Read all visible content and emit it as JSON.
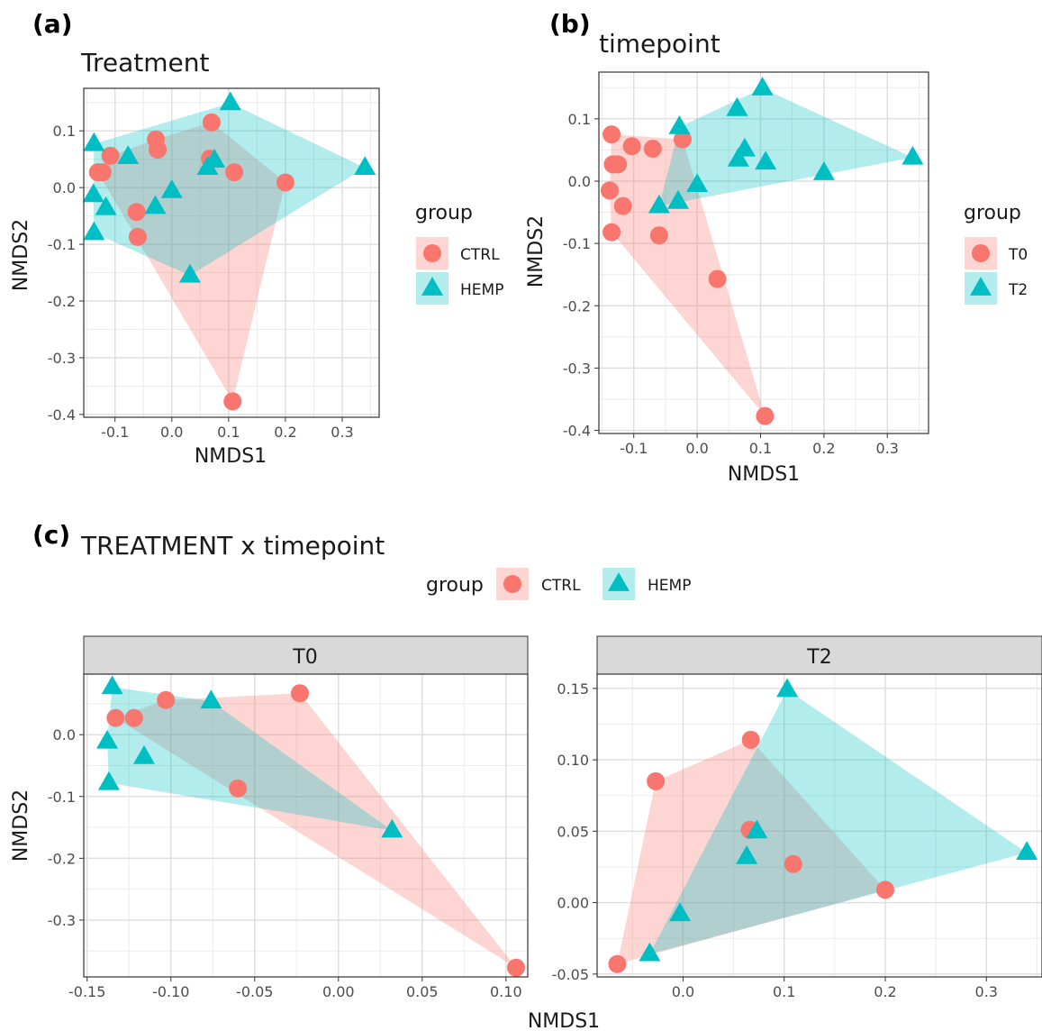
{
  "figure": {
    "colors": {
      "CTRL": "#F8766D",
      "HEMP": "#00BFC4",
      "T0": "#F8766D",
      "T2": "#00BFC4"
    }
  },
  "panels": {
    "a": {
      "letter": "(a)",
      "title": "Treatment"
    },
    "b": {
      "letter": "(b)",
      "title": "timepoint"
    },
    "c": {
      "letter": "(c)",
      "title": "TREATMENT x timepoint"
    }
  },
  "legend_a": {
    "title": "group",
    "items": [
      {
        "label": "CTRL",
        "shape": "circle"
      },
      {
        "label": "HEMP",
        "shape": "triangle"
      }
    ]
  },
  "legend_b": {
    "title": "group",
    "items": [
      {
        "label": "T0",
        "shape": "circle"
      },
      {
        "label": "T2",
        "shape": "triangle"
      }
    ]
  },
  "legend_c": {
    "title": "group",
    "items": [
      {
        "label": "CTRL",
        "shape": "circle"
      },
      {
        "label": "HEMP",
        "shape": "triangle"
      }
    ]
  },
  "chart_data": [
    {
      "panel": "a",
      "type": "scatter",
      "title": "Treatment",
      "xlabel": "NMDS1",
      "ylabel": "NMDS2",
      "xlim": [
        -0.155,
        0.365
      ],
      "ylim": [
        -0.405,
        0.175
      ],
      "xticks": [
        "-0.1",
        "0.0",
        "0.1",
        "0.2",
        "0.3"
      ],
      "xtick_values": [
        -0.1,
        0.0,
        0.1,
        0.2,
        0.3
      ],
      "yticks": [
        "0.1",
        "0.0",
        "-0.1",
        "-0.2",
        "-0.3",
        "-0.4"
      ],
      "ytick_values": [
        0.1,
        0.0,
        -0.1,
        -0.2,
        -0.3,
        -0.4
      ],
      "grid": true,
      "legend_position": "right",
      "hulls": true,
      "series": [
        {
          "name": "CTRL",
          "shape": "circle",
          "x": [
            -0.13,
            -0.122,
            -0.108,
            -0.028,
            -0.025,
            -0.062,
            -0.06,
            0.07,
            0.067,
            0.11,
            0.2,
            0.107
          ],
          "y": [
            0.027,
            0.027,
            0.056,
            0.085,
            0.067,
            -0.043,
            -0.087,
            0.115,
            0.051,
            0.027,
            0.009,
            -0.377
          ]
        },
        {
          "name": "HEMP",
          "shape": "triangle",
          "x": [
            -0.137,
            -0.077,
            -0.138,
            -0.137,
            -0.116,
            -0.029,
            0.0,
            0.063,
            0.075,
            0.032,
            0.103,
            0.34
          ],
          "y": [
            0.077,
            0.054,
            -0.013,
            -0.08,
            -0.036,
            -0.034,
            -0.006,
            0.035,
            0.048,
            -0.155,
            0.149,
            0.035
          ]
        }
      ]
    },
    {
      "panel": "b",
      "type": "scatter",
      "title": "timepoint",
      "xlabel": "NMDS1",
      "ylabel": "NMDS2",
      "xlim": [
        -0.155,
        0.365
      ],
      "ylim": [
        -0.405,
        0.175
      ],
      "xticks": [
        "-0.1",
        "0.0",
        "0.1",
        "0.2",
        "0.3"
      ],
      "xtick_values": [
        -0.1,
        0.0,
        0.1,
        0.2,
        0.3
      ],
      "yticks": [
        "0.1",
        "0.0",
        "-0.1",
        "-0.2",
        "-0.3",
        "-0.4"
      ],
      "ytick_values": [
        0.1,
        0.0,
        -0.1,
        -0.2,
        -0.3,
        -0.4
      ],
      "grid": true,
      "legend_position": "right",
      "hulls": true,
      "series": [
        {
          "name": "T0",
          "shape": "circle",
          "x": [
            -0.135,
            -0.103,
            -0.07,
            -0.125,
            -0.133,
            -0.138,
            -0.117,
            -0.06,
            -0.135,
            -0.023,
            0.032,
            0.107
          ],
          "y": [
            0.075,
            0.056,
            0.052,
            0.027,
            0.027,
            -0.015,
            -0.04,
            -0.087,
            -0.082,
            0.067,
            -0.157,
            -0.377
          ]
        },
        {
          "name": "T2",
          "shape": "triangle",
          "x": [
            -0.028,
            -0.06,
            -0.03,
            0.0,
            0.063,
            0.075,
            0.065,
            0.103,
            0.108,
            0.2,
            0.34
          ],
          "y": [
            0.087,
            -0.04,
            -0.033,
            -0.006,
            0.116,
            0.051,
            0.035,
            0.149,
            0.03,
            0.013,
            0.038
          ]
        }
      ]
    },
    {
      "panel": "c",
      "facet": "T0",
      "type": "scatter",
      "xlabel": "NMDS1",
      "ylabel": "NMDS2",
      "xlim": [
        -0.152,
        0.113
      ],
      "ylim": [
        -0.392,
        0.098
      ],
      "xticks": [
        "-0.15",
        "-0.10",
        "-0.05",
        "0.00",
        "0.05",
        "0.10"
      ],
      "xtick_values": [
        -0.15,
        -0.1,
        -0.05,
        0.0,
        0.05,
        0.1
      ],
      "yticks": [
        "0.0",
        "-0.1",
        "-0.2",
        "-0.3"
      ],
      "ytick_values": [
        0.0,
        -0.1,
        -0.2,
        -0.3
      ],
      "grid": true,
      "hulls": true,
      "series": [
        {
          "name": "CTRL",
          "shape": "circle",
          "x": [
            -0.133,
            -0.122,
            -0.103,
            -0.023,
            -0.06,
            0.106
          ],
          "y": [
            0.027,
            0.027,
            0.056,
            0.067,
            -0.087,
            -0.377
          ]
        },
        {
          "name": "HEMP",
          "shape": "triangle",
          "x": [
            -0.135,
            -0.138,
            -0.137,
            -0.116,
            -0.076,
            0.032
          ],
          "y": [
            0.077,
            -0.011,
            -0.078,
            -0.036,
            0.054,
            -0.155
          ]
        }
      ]
    },
    {
      "panel": "c",
      "facet": "T2",
      "type": "scatter",
      "xlabel": "NMDS1",
      "ylabel": "NMDS2",
      "xlim": [
        -0.085,
        0.355
      ],
      "ylim": [
        -0.052,
        0.16
      ],
      "xticks": [
        "0.0",
        "0.1",
        "0.2",
        "0.3"
      ],
      "xtick_values": [
        0.0,
        0.1,
        0.2,
        0.3
      ],
      "yticks": [
        "0.15",
        "0.10",
        "0.05",
        "0.00",
        "-0.05"
      ],
      "ytick_values": [
        0.15,
        0.1,
        0.05,
        0.0,
        -0.05
      ],
      "grid": true,
      "hulls": true,
      "series": [
        {
          "name": "CTRL",
          "shape": "circle",
          "x": [
            -0.065,
            -0.027,
            0.067,
            0.066,
            0.109,
            0.2
          ],
          "y": [
            -0.043,
            0.085,
            0.114,
            0.051,
            0.027,
            0.009
          ]
        },
        {
          "name": "HEMP",
          "shape": "triangle",
          "x": [
            -0.033,
            -0.003,
            0.063,
            0.073,
            0.103,
            0.34
          ],
          "y": [
            -0.036,
            -0.008,
            0.032,
            0.05,
            0.149,
            0.035
          ]
        }
      ]
    }
  ]
}
